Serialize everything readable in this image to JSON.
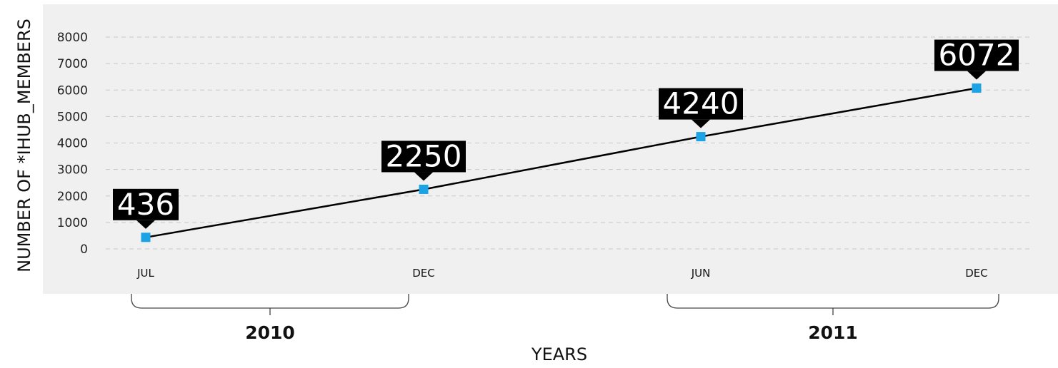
{
  "chart_data": {
    "type": "line",
    "title": "",
    "xlabel": "YEARS",
    "ylabel": "NUMBER OF *IHUB_MEMBERS",
    "ylim": [
      0,
      8000
    ],
    "yticks": [
      0,
      1000,
      2000,
      3000,
      4000,
      5000,
      6000,
      7000,
      8000
    ],
    "grid": true,
    "x": [
      "2010-07",
      "2010-12",
      "2011-06",
      "2011-12"
    ],
    "categories": [
      "JUL",
      "DEC",
      "JUN",
      "DEC"
    ],
    "values": [
      436,
      2250,
      4240,
      6072
    ],
    "data_labels": [
      "436",
      "2250",
      "4240",
      "6072"
    ],
    "year_groups": [
      {
        "label": "2010",
        "categories": [
          "JUL",
          "DEC"
        ]
      },
      {
        "label": "2011",
        "categories": [
          "JUN",
          "DEC"
        ]
      }
    ],
    "colors": {
      "plot_background": "#f0f0f0",
      "line": "#000000",
      "marker": "#1ca3e6",
      "callout_background": "#000000",
      "callout_text": "#ffffff",
      "grid": "#c8c8c8"
    }
  }
}
